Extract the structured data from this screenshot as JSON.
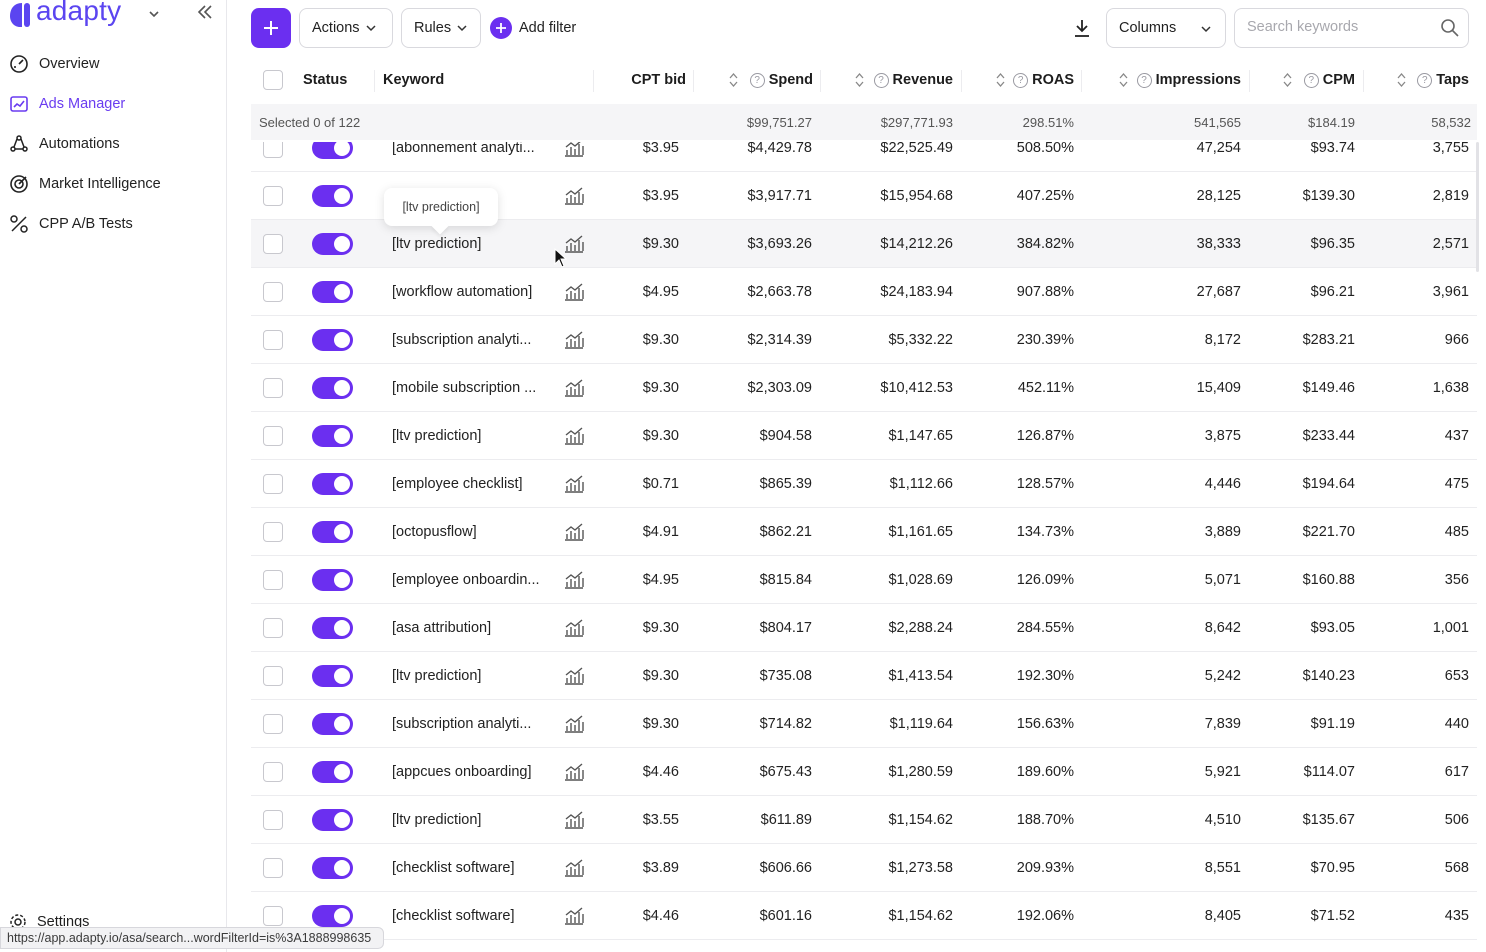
{
  "sidebar": {
    "logo": "adapty",
    "nav": [
      {
        "label": "Overview",
        "icon": "gauge-icon",
        "active": false
      },
      {
        "label": "Ads Manager",
        "icon": "ads-icon",
        "active": true
      },
      {
        "label": "Automations",
        "icon": "automation-icon",
        "active": false
      },
      {
        "label": "Market Intelligence",
        "icon": "target-icon",
        "active": false
      },
      {
        "label": "CPP A/B Tests",
        "icon": "ab-test-icon",
        "active": false
      }
    ],
    "settings": "Settings"
  },
  "toolbar": {
    "actions": "Actions",
    "rules": "Rules",
    "add_filter": "Add filter",
    "columns": "Columns",
    "search_placeholder": "Search keywords"
  },
  "table": {
    "headers": {
      "status": "Status",
      "keyword": "Keyword",
      "cpt_bid": "CPT bid",
      "spend": "Spend",
      "revenue": "Revenue",
      "roas": "ROAS",
      "impressions": "Impressions",
      "cpm": "CPM",
      "taps": "Taps"
    },
    "totals": {
      "selected": "Selected 0 of 122",
      "spend": "$99,751.27",
      "revenue": "$297,771.93",
      "roas": "298.51%",
      "impressions": "541,565",
      "cpm": "$184.19",
      "taps": "58,532"
    },
    "rows": [
      {
        "keyword": "[abonnement analyti...",
        "cpt": "$3.95",
        "spend": "$4,429.78",
        "revenue": "$22,525.49",
        "roas": "508.50%",
        "impressions": "47,254",
        "cpm": "$93.74",
        "taps": "3,755"
      },
      {
        "keyword": "ts]",
        "cpt": "$3.95",
        "spend": "$3,917.71",
        "revenue": "$15,954.68",
        "roas": "407.25%",
        "impressions": "28,125",
        "cpm": "$139.30",
        "taps": "2,819"
      },
      {
        "keyword": "[ltv prediction]",
        "cpt": "$9.30",
        "spend": "$3,693.26",
        "revenue": "$14,212.26",
        "roas": "384.82%",
        "impressions": "38,333",
        "cpm": "$96.35",
        "taps": "2,571"
      },
      {
        "keyword": "[workflow automation]",
        "cpt": "$4.95",
        "spend": "$2,663.78",
        "revenue": "$24,183.94",
        "roas": "907.88%",
        "impressions": "27,687",
        "cpm": "$96.21",
        "taps": "3,961"
      },
      {
        "keyword": "[subscription analyti...",
        "cpt": "$9.30",
        "spend": "$2,314.39",
        "revenue": "$5,332.22",
        "roas": "230.39%",
        "impressions": "8,172",
        "cpm": "$283.21",
        "taps": "966"
      },
      {
        "keyword": "[mobile subscription ...",
        "cpt": "$9.30",
        "spend": "$2,303.09",
        "revenue": "$10,412.53",
        "roas": "452.11%",
        "impressions": "15,409",
        "cpm": "$149.46",
        "taps": "1,638"
      },
      {
        "keyword": "[ltv prediction]",
        "cpt": "$9.30",
        "spend": "$904.58",
        "revenue": "$1,147.65",
        "roas": "126.87%",
        "impressions": "3,875",
        "cpm": "$233.44",
        "taps": "437"
      },
      {
        "keyword": "[employee checklist]",
        "cpt": "$0.71",
        "spend": "$865.39",
        "revenue": "$1,112.66",
        "roas": "128.57%",
        "impressions": "4,446",
        "cpm": "$194.64",
        "taps": "475"
      },
      {
        "keyword": "[octopusflow]",
        "cpt": "$4.91",
        "spend": "$862.21",
        "revenue": "$1,161.65",
        "roas": "134.73%",
        "impressions": "3,889",
        "cpm": "$221.70",
        "taps": "485"
      },
      {
        "keyword": "[employee onboardin...",
        "cpt": "$4.95",
        "spend": "$815.84",
        "revenue": "$1,028.69",
        "roas": "126.09%",
        "impressions": "5,071",
        "cpm": "$160.88",
        "taps": "356"
      },
      {
        "keyword": "[asa attribution]",
        "cpt": "$9.30",
        "spend": "$804.17",
        "revenue": "$2,288.24",
        "roas": "284.55%",
        "impressions": "8,642",
        "cpm": "$93.05",
        "taps": "1,001"
      },
      {
        "keyword": "[ltv prediction]",
        "cpt": "$9.30",
        "spend": "$735.08",
        "revenue": "$1,413.54",
        "roas": "192.30%",
        "impressions": "5,242",
        "cpm": "$140.23",
        "taps": "653"
      },
      {
        "keyword": "[subscription analyti...",
        "cpt": "$9.30",
        "spend": "$714.82",
        "revenue": "$1,119.64",
        "roas": "156.63%",
        "impressions": "7,839",
        "cpm": "$91.19",
        "taps": "440"
      },
      {
        "keyword": "[appcues onboarding]",
        "cpt": "$4.46",
        "spend": "$675.43",
        "revenue": "$1,280.59",
        "roas": "189.60%",
        "impressions": "5,921",
        "cpm": "$114.07",
        "taps": "617"
      },
      {
        "keyword": "[ltv prediction]",
        "cpt": "$3.55",
        "spend": "$611.89",
        "revenue": "$1,154.62",
        "roas": "188.70%",
        "impressions": "4,510",
        "cpm": "$135.67",
        "taps": "506"
      },
      {
        "keyword": "[checklist software]",
        "cpt": "$3.89",
        "spend": "$606.66",
        "revenue": "$1,273.58",
        "roas": "209.93%",
        "impressions": "8,551",
        "cpm": "$70.95",
        "taps": "568"
      },
      {
        "keyword": "[checklist software]",
        "cpt": "$4.46",
        "spend": "$601.16",
        "revenue": "$1,154.62",
        "roas": "192.06%",
        "impressions": "8,405",
        "cpm": "$71.52",
        "taps": "435"
      }
    ]
  },
  "tooltip": "[ltv prediction]",
  "status_url": "https://app.adapty.io/asa/search...wordFilterId=is%3A1888998635",
  "colors": {
    "accent": "#6b2ff0",
    "brand": "#5b45f0"
  }
}
